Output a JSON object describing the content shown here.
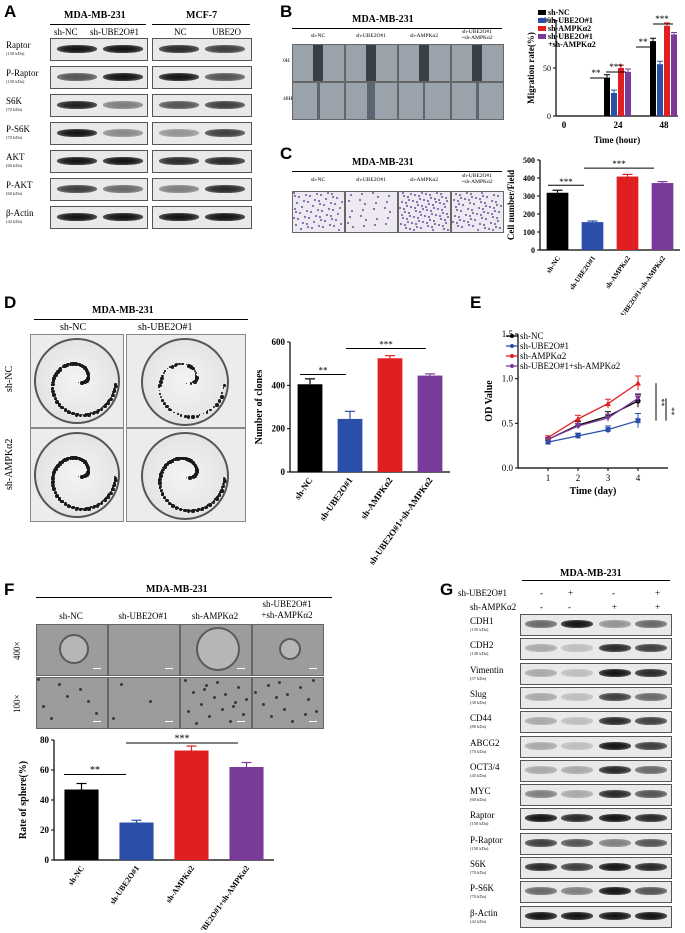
{
  "panels": {
    "A": {
      "letter": "A",
      "group1": "MDA-MB-231",
      "group2": "MCF-7",
      "lanes1": [
        "sh-NC",
        "sh-UBE2O#1"
      ],
      "lanes2": [
        "NC",
        "UBE2O"
      ],
      "rows": [
        {
          "name": "Raptor",
          "kda": "(150 kDa)"
        },
        {
          "name": "P-Raptor",
          "kda": "(150 kDa)"
        },
        {
          "name": "S6K",
          "kda": "(70 kDa)"
        },
        {
          "name": "P-S6K",
          "kda": "(70 kDa)"
        },
        {
          "name": "AKT",
          "kda": "(60 kDa)"
        },
        {
          "name": "P-AKT",
          "kda": "(60 kDa)"
        },
        {
          "name": "β-Actin",
          "kda": "(42 kDa)"
        }
      ]
    },
    "B": {
      "letter": "B",
      "title": "MDA-MB-231",
      "cols": [
        "sh-NC",
        "sh-UBE2O#1",
        "sh-AMPKα2",
        "sh-UBE2O#1\n+sh-AMPKα2"
      ],
      "rows": [
        "0H",
        "48H"
      ]
    },
    "C": {
      "letter": "C",
      "title": "MDA-MB-231",
      "cols": [
        "sh-NC",
        "sh-UBE2O#1",
        "sh-AMPKα2",
        "sh-UBE2O#1\n+sh-AMPKα2"
      ]
    },
    "D": {
      "letter": "D",
      "title": "MDA-MB-231",
      "cols": [
        "sh-NC",
        "sh-UBE2O#1"
      ],
      "rows": [
        "sh-NC",
        "sh-AMPKα2"
      ]
    },
    "E": {
      "letter": "E"
    },
    "F": {
      "letter": "F",
      "title": "MDA-MB-231",
      "cols": [
        "sh-NC",
        "sh-UBE2O#1",
        "sh-AMPKα2",
        "sh-UBE2O#1\n+sh-AMPKα2"
      ],
      "rows": [
        "400×",
        "100×"
      ]
    },
    "G": {
      "letter": "G",
      "title": "MDA-MB-231",
      "cond_labels": [
        "sh-UBE2O#1",
        "sh-AMPKα2"
      ],
      "cond_signs": [
        [
          "-",
          "+",
          "-",
          "+"
        ],
        [
          "-",
          "-",
          "+",
          "+"
        ]
      ],
      "rows": [
        {
          "name": "CDH1",
          "kda": "(135 kDa)"
        },
        {
          "name": "CDH2",
          "kda": "(130 kDa)"
        },
        {
          "name": "Vimentin",
          "kda": "(57 kDa)"
        },
        {
          "name": "Slug",
          "kda": "(30 kDa)"
        },
        {
          "name": "CD44",
          "kda": "(80 kDa)"
        },
        {
          "name": "ABCG2",
          "kda": "(70 kDa)"
        },
        {
          "name": "OCT3/4",
          "kda": "(45 kDa)"
        },
        {
          "name": "MYC",
          "kda": "(60 kDa)"
        },
        {
          "name": "Raptor",
          "kda": "(150 kDa)"
        },
        {
          "name": "P-Raptor",
          "kda": "(150 kDa)"
        },
        {
          "name": "S6K",
          "kda": "(70 kDa)"
        },
        {
          "name": "P-S6K",
          "kda": "(70 kDa)"
        },
        {
          "name": "β-Actin",
          "kda": "(42 kDa)"
        }
      ]
    }
  },
  "chart_data": [
    {
      "id": "B-migration",
      "type": "bar",
      "ylabel": "Migration rate(%)",
      "xlabel": "Time (hour)",
      "categories": [
        "0",
        "24",
        "48"
      ],
      "ylim": [
        0,
        100
      ],
      "yticks": [
        "0",
        "50",
        "100"
      ],
      "legend": [
        "sh-NC",
        "sh-UBE2O#1",
        "sh-AMPKα2",
        "sh-UBE2O#1\n+sh-AMPKα2"
      ],
      "legend_position": "top-left",
      "series": [
        {
          "name": "sh-NC",
          "values": [
            0,
            40,
            78
          ],
          "errors": [
            0,
            3,
            3
          ]
        },
        {
          "name": "sh-UBE2O#1",
          "values": [
            0,
            24,
            54
          ],
          "errors": [
            0,
            3,
            3
          ]
        },
        {
          "name": "sh-AMPKα2",
          "values": [
            0,
            50,
            94
          ],
          "errors": [
            0,
            3,
            3
          ]
        },
        {
          "name": "sh-UBE2O#1\n+sh-AMPKα2",
          "values": [
            0,
            46,
            85
          ],
          "errors": [
            0,
            3,
            2
          ]
        }
      ],
      "annotations": [
        "**",
        "***",
        "**",
        "***"
      ]
    },
    {
      "id": "C-invasion",
      "type": "bar",
      "ylabel": "Cell number/Field",
      "categories": [
        "sh-NC",
        "sh-UBE2O#1",
        "sh-AMPKα2",
        "sh-UBE2O#1+sh-AMPKα2"
      ],
      "ylim": [
        0,
        500
      ],
      "yticks": [
        "0",
        "100",
        "200",
        "300",
        "400",
        "500"
      ],
      "values": [
        318,
        155,
        408,
        372
      ],
      "errors": [
        14,
        6,
        12,
        8
      ],
      "annotations": [
        "***",
        "***"
      ]
    },
    {
      "id": "D-clones",
      "type": "bar",
      "ylabel": "Number of clones",
      "categories": [
        "sh-NC",
        "sh-UBE2O#1",
        "sh-AMPKα2",
        "sh-UBE2O#1+sh-AMPKα2"
      ],
      "ylim": [
        0,
        600
      ],
      "yticks": [
        "0",
        "200",
        "400",
        "600"
      ],
      "values": [
        405,
        245,
        525,
        445
      ],
      "errors": [
        25,
        35,
        12,
        8
      ],
      "annotations": [
        "**",
        "***"
      ]
    },
    {
      "id": "E-od",
      "type": "line",
      "ylabel": "OD Value",
      "xlabel": "Time (day)",
      "x": [
        1,
        2,
        3,
        4
      ],
      "xlim": [
        0,
        5
      ],
      "ylim": [
        0,
        1.5
      ],
      "yticks": [
        "0.0",
        "0.5",
        "1.0",
        "1.5"
      ],
      "legend_position": "top-left",
      "series": [
        {
          "name": "sh-NC",
          "values": [
            0.32,
            0.48,
            0.58,
            0.75
          ],
          "errors": [
            0.02,
            0.04,
            0.05,
            0.07
          ]
        },
        {
          "name": "sh-UBE2O#1",
          "values": [
            0.29,
            0.36,
            0.43,
            0.53
          ],
          "errors": [
            0.02,
            0.03,
            0.04,
            0.08
          ]
        },
        {
          "name": "sh-AMPKα2",
          "values": [
            0.34,
            0.55,
            0.72,
            0.95
          ],
          "errors": [
            0.02,
            0.04,
            0.05,
            0.08
          ]
        },
        {
          "name": "sh-UBE2O#1+sh-AMPKα2",
          "values": [
            0.32,
            0.47,
            0.56,
            0.78
          ],
          "errors": [
            0.02,
            0.03,
            0.04,
            0.05
          ]
        }
      ],
      "annotations": [
        "**",
        "**"
      ]
    },
    {
      "id": "F-sphere",
      "type": "bar",
      "ylabel": "Rate of sphere(%)",
      "categories": [
        "sh-NC",
        "sh-UBE2O#1",
        "sh-AMPKα2",
        "sh-UBE2O#1+sh-AMPKα2"
      ],
      "ylim": [
        0,
        80
      ],
      "yticks": [
        "0",
        "20",
        "40",
        "60",
        "80"
      ],
      "values": [
        47,
        25,
        73,
        62
      ],
      "errors": [
        4,
        1.5,
        3,
        3
      ],
      "annotations": [
        "**",
        "***"
      ]
    }
  ],
  "colors": {
    "black": "#000000",
    "blue": "#2b4fa8",
    "red": "#e02020",
    "purple": "#7a3a9a"
  }
}
